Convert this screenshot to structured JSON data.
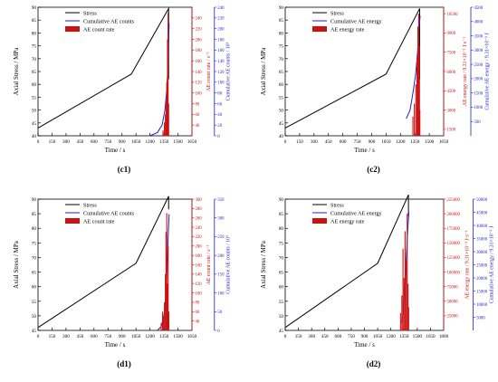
{
  "colors": {
    "stress": "#000000",
    "cumulative": "#1f1fcc",
    "rate": "#cc1111",
    "frame": "#000000"
  },
  "chart_data": [
    {
      "type": "line",
      "panel_label": "(c1)",
      "title": "",
      "xlabel": "Time / s",
      "ylabel_left": "Axial Stress / MPa",
      "ylabel_right_inner": "AE count rate / s⁻¹",
      "ylabel_right_outer": "Cumulative AE counts / 10³",
      "xlim": [
        0,
        1650
      ],
      "ylim": [
        40,
        90
      ],
      "y_inner_lim": [
        20,
        260
      ],
      "y_outer_lim": [
        0,
        240
      ],
      "x_ticks": [
        "0",
        "150",
        "300",
        "450",
        "600",
        "750",
        "900",
        "1050",
        "1200",
        "1350",
        "1500",
        "1650"
      ],
      "y_ticks": [
        "40",
        "45",
        "50",
        "55",
        "60",
        "65",
        "70",
        "75",
        "80",
        "85",
        "90"
      ],
      "y_inner_ticks": [
        "40",
        "60",
        "80",
        "100",
        "120",
        "140",
        "160",
        "180",
        "200",
        "220",
        "240"
      ],
      "y_outer_ticks": [
        "0",
        "20",
        "40",
        "60",
        "80",
        "100",
        "120",
        "140",
        "160",
        "180",
        "200",
        "220",
        "240"
      ],
      "legend": {
        "position": "top-left",
        "entries": [
          "Stress",
          "Cumulative AE counts",
          "AE count rate"
        ]
      },
      "series": [
        {
          "name": "Stress",
          "axis": "left",
          "x": [
            0,
            1000,
            1400,
            1400
          ],
          "y": [
            43,
            64,
            89.5,
            62
          ]
        },
        {
          "name": "Cumulative AE counts",
          "axis": "outer",
          "x": [
            1200,
            1280,
            1330,
            1360,
            1380,
            1395,
            1405
          ],
          "y": [
            0,
            6,
            20,
            48,
            85,
            140,
            210
          ]
        },
        {
          "name": "AE count rate",
          "axis": "inner",
          "x": [
            1340,
            1355,
            1365,
            1372,
            1380,
            1388,
            1394,
            1400
          ],
          "y": [
            30,
            45,
            60,
            85,
            120,
            200,
            250,
            80
          ]
        }
      ]
    },
    {
      "type": "line",
      "panel_label": "(c2)",
      "title": "",
      "xlabel": "Time / s",
      "ylabel_left": "Axial Stress / MPa",
      "ylabel_right_inner": "AE energy rate / 9.31×10⁻³ J·s⁻¹",
      "ylabel_right_outer": "Cumulative AE energy / 9.31×10⁻³ J",
      "xlim": [
        0,
        1650
      ],
      "ylim": [
        40,
        90
      ],
      "y_inner_lim": [
        1000,
        11000
      ],
      "y_outer_lim": [
        0,
        4500
      ],
      "x_ticks": [
        "0",
        "150",
        "300",
        "450",
        "600",
        "750",
        "900",
        "1050",
        "1200",
        "1350",
        "1500",
        "1650"
      ],
      "y_ticks": [
        "40",
        "45",
        "50",
        "55",
        "60",
        "65",
        "70",
        "75",
        "80",
        "85",
        "90"
      ],
      "y_inner_ticks": [
        "1500",
        "3000",
        "4500",
        "6000",
        "7500",
        "9000",
        "10500"
      ],
      "y_outer_ticks": [
        "500",
        "1000",
        "1500",
        "2000",
        "2500",
        "3000",
        "3500",
        "4000",
        "4500"
      ],
      "legend": {
        "position": "top-left",
        "entries": [
          "Stress",
          "Cumulative AE energy",
          "AE energy rate"
        ]
      },
      "series": [
        {
          "name": "Stress",
          "axis": "left",
          "x": [
            0,
            1050,
            1400,
            1400
          ],
          "y": [
            43,
            64,
            89.5,
            62
          ]
        },
        {
          "name": "Cumulative AE energy",
          "axis": "outer",
          "x": [
            1260,
            1300,
            1330,
            1360,
            1380,
            1395,
            1405
          ],
          "y": [
            600,
            900,
            1500,
            2200,
            3000,
            3800,
            4200
          ]
        },
        {
          "name": "AE energy rate",
          "axis": "inner",
          "x": [
            1330,
            1345,
            1360,
            1372,
            1382,
            1390,
            1398,
            1402
          ],
          "y": [
            2500,
            3500,
            5000,
            7000,
            9500,
            10500,
            8000,
            3000
          ]
        }
      ]
    },
    {
      "type": "line",
      "panel_label": "(d1)",
      "title": "",
      "xlabel": "Time / s",
      "ylabel_left": "Axial Stress / MPa",
      "ylabel_right_inner": "AE count rate / s⁻¹",
      "ylabel_right_outer": "Cumulative AE counts / 10³",
      "xlim": [
        0,
        1650
      ],
      "ylim": [
        45,
        90
      ],
      "y_inner_lim": [
        20,
        300
      ],
      "y_outer_lim": [
        0,
        350
      ],
      "x_ticks": [
        "0",
        "150",
        "300",
        "450",
        "600",
        "750",
        "900",
        "1050",
        "1200",
        "1350",
        "1500",
        "1650"
      ],
      "y_ticks": [
        "45",
        "50",
        "55",
        "60",
        "65",
        "70",
        "75",
        "80",
        "85",
        "90"
      ],
      "y_inner_ticks": [
        "40",
        "60",
        "80",
        "100",
        "120",
        "140",
        "160",
        "180",
        "200",
        "220",
        "240",
        "260",
        "280",
        "300"
      ],
      "y_outer_ticks": [
        "0",
        "50",
        "100",
        "150",
        "200",
        "250",
        "300",
        "350"
      ],
      "legend": {
        "position": "top-left",
        "entries": [
          "Stress",
          "Cumulative AE counts",
          "AE count rate"
        ]
      },
      "series": [
        {
          "name": "Stress",
          "axis": "left",
          "x": [
            0,
            1050,
            1400,
            1400
          ],
          "y": [
            46,
            68,
            91,
            86.5
          ]
        },
        {
          "name": "Cumulative AE counts",
          "axis": "outer",
          "x": [
            1280,
            1320,
            1350,
            1370,
            1385,
            1395,
            1405
          ],
          "y": [
            0,
            10,
            40,
            90,
            170,
            250,
            310
          ]
        },
        {
          "name": "AE count rate",
          "axis": "inner",
          "x": [
            1320,
            1335,
            1345,
            1355,
            1365,
            1372,
            1380,
            1388,
            1395,
            1402
          ],
          "y": [
            35,
            60,
            50,
            80,
            140,
            230,
            270,
            120,
            200,
            60
          ]
        }
      ]
    },
    {
      "type": "line",
      "panel_label": "(d2)",
      "title": "",
      "xlabel": "Time / s",
      "ylabel_left": "Axial Stress / MPa",
      "ylabel_right_inner": "AE energy rate / 9.31×10⁻³ J·s⁻¹",
      "ylabel_right_outer": "Cumulative AE energy / 9.31×10⁻³ J",
      "xlim": [
        0,
        1800
      ],
      "ylim": [
        45,
        90
      ],
      "y_inner_lim": [
        0,
        225000
      ],
      "y_outer_lim": [
        0,
        50000
      ],
      "x_ticks": [
        "0",
        "150",
        "300",
        "450",
        "600",
        "750",
        "900",
        "1050",
        "1200",
        "1350",
        "1500",
        "1650",
        "1800"
      ],
      "y_ticks": [
        "45",
        "50",
        "55",
        "60",
        "65",
        "70",
        "75",
        "80",
        "85",
        "90"
      ],
      "y_inner_ticks": [
        "25000",
        "50000",
        "75000",
        "100000",
        "125000",
        "150000",
        "175000",
        "200000",
        "225000"
      ],
      "y_outer_ticks": [
        "5000",
        "10000",
        "15000",
        "20000",
        "25000",
        "30000",
        "35000",
        "40000",
        "45000",
        "50000"
      ],
      "legend": {
        "position": "top-left",
        "entries": [
          "Stress",
          "Cumulative AE energy",
          "AE energy rate"
        ]
      },
      "series": [
        {
          "name": "Stress",
          "axis": "left",
          "x": [
            0,
            1050,
            1400,
            1400
          ],
          "y": [
            46,
            68,
            91.5,
            84
          ]
        },
        {
          "name": "Cumulative AE energy",
          "axis": "outer",
          "x": [
            1320,
            1340,
            1355,
            1370,
            1385,
            1395,
            1405
          ],
          "y": [
            3000,
            6000,
            14000,
            24000,
            34000,
            40000,
            45000
          ]
        },
        {
          "name": "AE energy rate",
          "axis": "inner",
          "x": [
            1310,
            1325,
            1338,
            1350,
            1362,
            1375,
            1386,
            1395,
            1402
          ],
          "y": [
            30000,
            60000,
            140000,
            90000,
            170000,
            120000,
            200000,
            80000,
            40000
          ]
        }
      ]
    }
  ]
}
